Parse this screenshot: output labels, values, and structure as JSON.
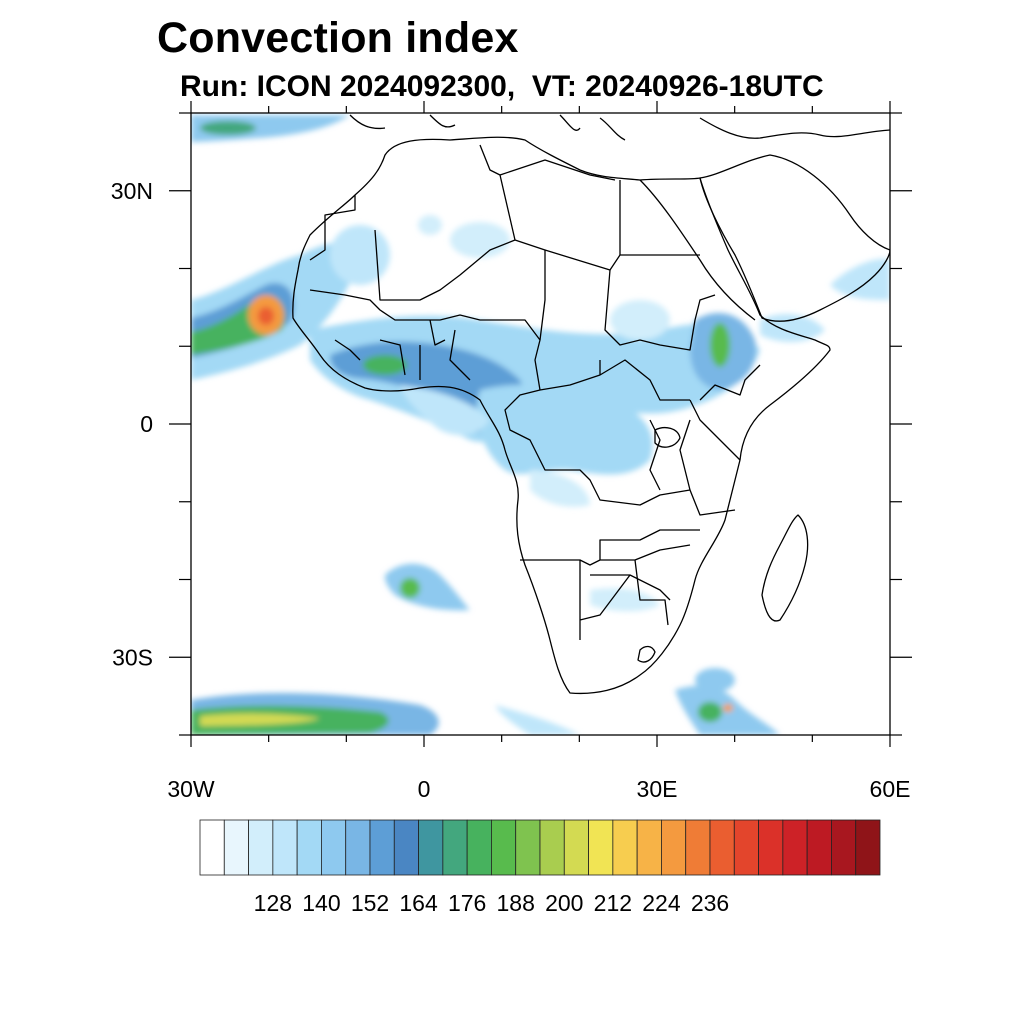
{
  "title": "Convection index",
  "subtitle": "Run: ICON 2024092300,  VT: 20240926-18UTC",
  "map": {
    "extent": {
      "lon_min": -30,
      "lon_max": 60,
      "lat_min": -40,
      "lat_max": 40
    },
    "lon_ticks": [
      {
        "value": -30,
        "label": "30W"
      },
      {
        "value": 0,
        "label": "0"
      },
      {
        "value": 30,
        "label": "30E"
      },
      {
        "value": 60,
        "label": "60E"
      }
    ],
    "lat_ticks": [
      {
        "value": 30,
        "label": "30N"
      },
      {
        "value": 0,
        "label": "0"
      },
      {
        "value": -30,
        "label": "30S"
      }
    ]
  },
  "colorbar": {
    "colors": [
      "#ffffff",
      "#e8f6fd",
      "#d2eefb",
      "#bfe6fa",
      "#a3d9f5",
      "#8ec9ef",
      "#79b6e5",
      "#5d9ed6",
      "#4a86c3",
      "#3f96a0",
      "#43a77e",
      "#47b25e",
      "#58bb4d",
      "#7fc34f",
      "#a9cd4f",
      "#d3da52",
      "#f1e454",
      "#f7cd4f",
      "#f7b347",
      "#f49a3f",
      "#ef7c36",
      "#ea5e30",
      "#e3452c",
      "#db3129",
      "#cd2227",
      "#bd1a23",
      "#a8171f",
      "#8f1418"
    ],
    "tick_labels": [
      "128",
      "140",
      "152",
      "164",
      "176",
      "188",
      "200",
      "212",
      "224",
      "236"
    ]
  }
}
